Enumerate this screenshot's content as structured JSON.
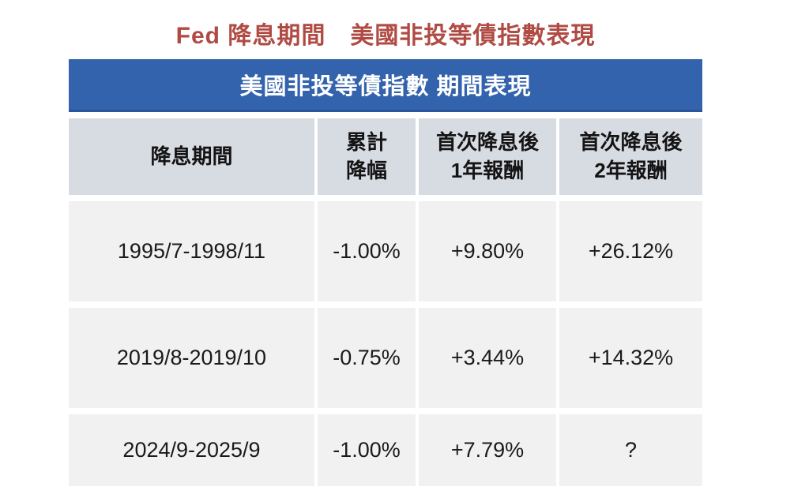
{
  "title": "Fed 降息期間　美國非投等債指數表現",
  "banner": "美國非投等債指數 期間表現",
  "columns": {
    "period": "降息期間",
    "cut": "累計\n降幅",
    "year1": "首次降息後\n1年報酬",
    "year2": "首次降息後\n2年報酬"
  },
  "rows": [
    {
      "period": "1995/7-1998/11",
      "cut": "-1.00%",
      "year1": "+9.80%",
      "year2": "+26.12%"
    },
    {
      "period": "2019/8-2019/10",
      "cut": "-0.75%",
      "year1": "+3.44%",
      "year2": "+14.32%"
    },
    {
      "period": "2024/9-2025/9",
      "cut": "-1.00%",
      "year1": "+7.79%",
      "year2": "?"
    }
  ],
  "colors": {
    "title_text": "#b04b44",
    "banner_bg": "#3263ac",
    "banner_text": "#ffffff",
    "header_bg": "#d7dbe2",
    "row_bg": "#f2f1f2",
    "body_text": "#1a1a1a"
  },
  "chart_data": {
    "type": "table",
    "title": "Fed 降息期間 美國非投等債指數表現",
    "table_header": "美國非投等債指數 期間表現",
    "columns": [
      "降息期間",
      "累計降幅",
      "首次降息後1年報酬",
      "首次降息後2年報酬"
    ],
    "rows": [
      [
        "1995/7-1998/11",
        "-1.00%",
        "+9.80%",
        "+26.12%"
      ],
      [
        "2019/8-2019/10",
        "-0.75%",
        "+3.44%",
        "+14.32%"
      ],
      [
        "2024/9-2025/9",
        "-1.00%",
        "+7.79%",
        "?"
      ]
    ]
  }
}
